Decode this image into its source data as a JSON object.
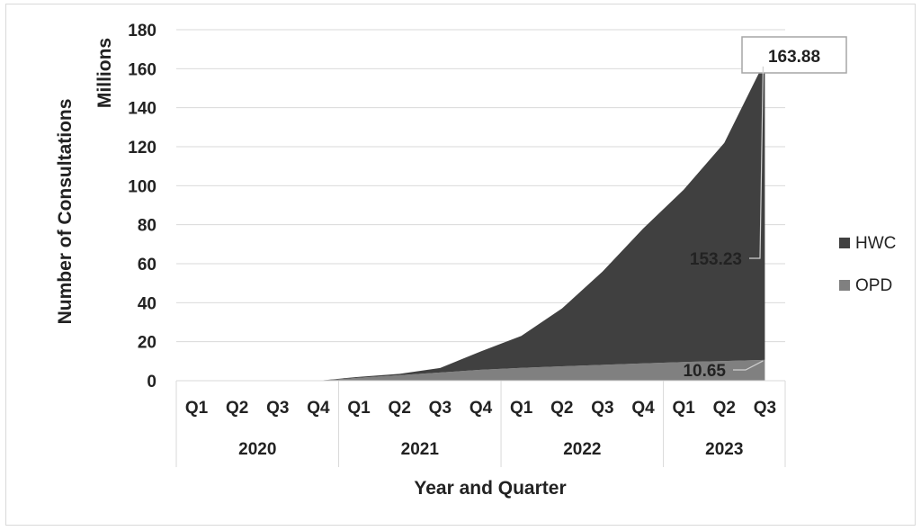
{
  "chart_data": {
    "type": "area",
    "stacked": true,
    "xlabel": "Year and Quarter",
    "ylabel": "Number of Consultations",
    "yunit": "Millions",
    "ylim": [
      0,
      180
    ],
    "yticks": [
      0,
      20,
      40,
      60,
      80,
      100,
      120,
      140,
      160,
      180
    ],
    "grid": true,
    "legend_position": "right",
    "categories": [
      "2020 Q1",
      "2020 Q2",
      "2020 Q3",
      "2020 Q4",
      "2021 Q1",
      "2021 Q2",
      "2021 Q3",
      "2021 Q4",
      "2022 Q1",
      "2022 Q2",
      "2022 Q3",
      "2022 Q4",
      "2023 Q1",
      "2023 Q2",
      "2023 Q3"
    ],
    "quarter_labels": [
      "Q1",
      "Q2",
      "Q3",
      "Q4",
      "Q1",
      "Q2",
      "Q3",
      "Q4",
      "Q1",
      "Q2",
      "Q3",
      "Q4",
      "Q1",
      "Q2",
      "Q3"
    ],
    "year_groups": [
      {
        "label": "2020",
        "span": 4
      },
      {
        "label": "2021",
        "span": 4
      },
      {
        "label": "2022",
        "span": 4
      },
      {
        "label": "2023",
        "span": 3
      }
    ],
    "series": [
      {
        "name": "OPD",
        "color": "#808080",
        "values": [
          0,
          0,
          0,
          0,
          1.5,
          2.8,
          4.2,
          5.6,
          6.6,
          7.4,
          8.1,
          8.9,
          9.6,
          10.1,
          10.65
        ]
      },
      {
        "name": "HWC",
        "color": "#404040",
        "values": [
          0,
          0,
          0,
          0,
          0.5,
          0.7,
          2.3,
          9.4,
          16.4,
          29.6,
          47.9,
          69.1,
          88.4,
          111.9,
          153.23
        ]
      }
    ],
    "annotations": [
      {
        "text": "163.88",
        "target": "total",
        "category": "2023 Q3",
        "boxed": true
      },
      {
        "text": "153.23",
        "target": "HWC",
        "category": "2023 Q3"
      },
      {
        "text": "10.65",
        "target": "OPD",
        "category": "2023 Q3"
      }
    ]
  }
}
